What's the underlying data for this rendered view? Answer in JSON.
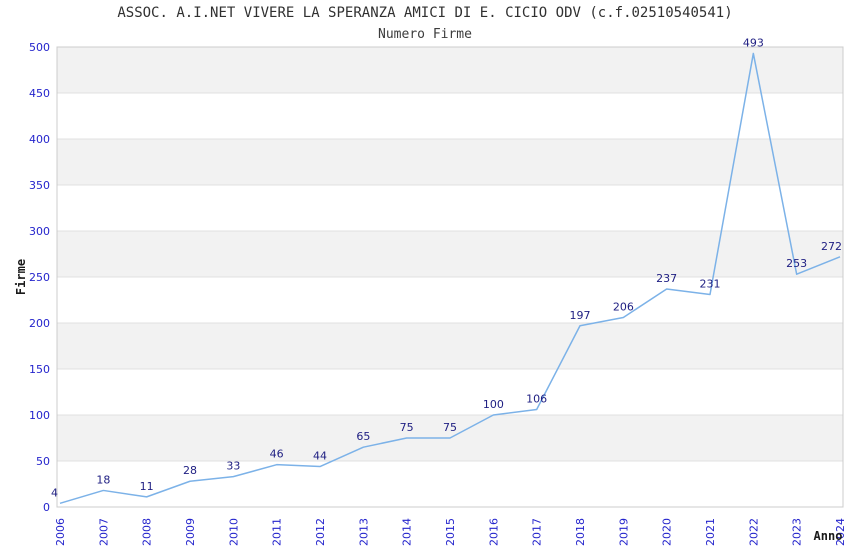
{
  "chart_data": {
    "type": "line",
    "title": "ASSOC. A.I.NET VIVERE LA SPERANZA AMICI DI E. CICIO ODV (c.f.02510540541)",
    "subtitle": "Numero Firme",
    "xlabel": "Anno",
    "ylabel": "Firme",
    "categories": [
      "2006",
      "2007",
      "2008",
      "2009",
      "2010",
      "2011",
      "2012",
      "2013",
      "2014",
      "2015",
      "2016",
      "2017",
      "2018",
      "2019",
      "2020",
      "2021",
      "2022",
      "2023",
      "2024"
    ],
    "values": [
      4,
      18,
      11,
      28,
      33,
      46,
      44,
      65,
      75,
      75,
      100,
      106,
      197,
      206,
      237,
      231,
      493,
      253,
      272
    ],
    "ylim": [
      0,
      500
    ],
    "ytick_step": 50,
    "grid": true,
    "legend": "none",
    "colors": {
      "line": "#7CB2E8",
      "point_label": "#1E1E82",
      "tick_label": "#2424CC",
      "band": "#F2F2F2",
      "gridline": "#E0E0E0",
      "plot_border": "#CCCCCC",
      "title_text": "#303030",
      "axis_title_text": "#1A1A1A"
    }
  }
}
